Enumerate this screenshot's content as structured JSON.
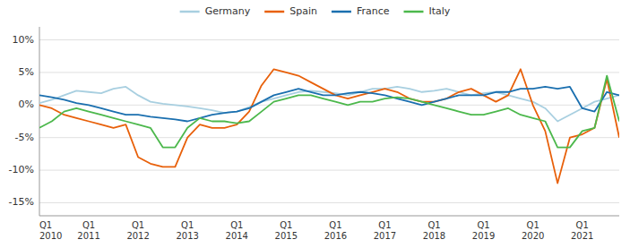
{
  "chart_data": {
    "type": "line",
    "categories": [
      "Q1\n2010",
      null,
      null,
      null,
      "Q1\n2011",
      null,
      null,
      null,
      "Q1\n2012",
      null,
      null,
      null,
      "Q1\n2013",
      null,
      null,
      null,
      "Q1\n2014",
      null,
      null,
      null,
      "Q1\n2015",
      null,
      null,
      null,
      "Q1\n2016",
      null,
      null,
      null,
      "Q1\n2017",
      null,
      null,
      null,
      "Q1\n2018",
      null,
      null,
      null,
      "Q1\n2019",
      null,
      null,
      null,
      "Q1\n2020",
      null,
      null,
      null,
      "Q1\n2021",
      null,
      null,
      null
    ],
    "series": [
      {
        "name": "Germany",
        "color": "#a8cfe0",
        "values": [
          0.3,
          0.8,
          1.5,
          2.2,
          2.0,
          1.8,
          2.5,
          2.8,
          1.5,
          0.5,
          0.2,
          0.0,
          -0.2,
          -0.5,
          -0.8,
          -1.2,
          -1.0,
          -0.3,
          0.5,
          1.0,
          1.5,
          2.0,
          2.2,
          2.0,
          1.8,
          1.5,
          2.0,
          2.5,
          2.5,
          2.8,
          2.5,
          2.0,
          2.2,
          2.5,
          2.0,
          1.5,
          1.8,
          2.0,
          1.5,
          1.0,
          0.5,
          -0.5,
          -2.5,
          -1.5,
          -0.5,
          0.5,
          1.0,
          1.5
        ]
      },
      {
        "name": "Spain",
        "color": "#e8600a",
        "values": [
          0.0,
          -0.5,
          -1.5,
          -2.0,
          -2.5,
          -3.0,
          -3.5,
          -3.0,
          -8.0,
          -9.0,
          -9.5,
          -9.5,
          -5.0,
          -3.0,
          -3.5,
          -3.5,
          -3.0,
          -1.0,
          3.0,
          5.5,
          5.0,
          4.5,
          3.5,
          2.5,
          1.5,
          1.0,
          1.5,
          2.0,
          2.5,
          2.0,
          1.0,
          0.5,
          0.5,
          1.0,
          2.0,
          2.5,
          1.5,
          0.5,
          1.5,
          5.5,
          0.0,
          -4.0,
          -12.0,
          -5.0,
          -4.5,
          -3.5,
          4.0,
          -5.0
        ]
      },
      {
        "name": "France",
        "color": "#1a6faf",
        "values": [
          1.5,
          1.2,
          0.8,
          0.3,
          0.0,
          -0.5,
          -1.0,
          -1.5,
          -1.5,
          -1.8,
          -2.0,
          -2.2,
          -2.5,
          -2.0,
          -1.5,
          -1.2,
          -1.0,
          -0.5,
          0.5,
          1.5,
          2.0,
          2.5,
          2.0,
          1.5,
          1.5,
          1.8,
          2.0,
          1.8,
          1.5,
          1.0,
          0.5,
          0.0,
          0.5,
          1.0,
          1.5,
          1.5,
          1.5,
          2.0,
          2.0,
          2.5,
          2.5,
          2.8,
          2.5,
          2.8,
          -0.5,
          -1.0,
          2.0,
          1.5
        ]
      },
      {
        "name": "Italy",
        "color": "#4cb84c",
        "values": [
          -3.5,
          -2.5,
          -1.0,
          -0.5,
          -1.0,
          -1.5,
          -2.0,
          -2.5,
          -3.0,
          -3.5,
          -6.5,
          -6.5,
          -3.5,
          -2.0,
          -2.5,
          -2.5,
          -2.8,
          -2.5,
          -1.0,
          0.5,
          1.0,
          1.5,
          1.5,
          1.0,
          0.5,
          0.0,
          0.5,
          0.5,
          1.0,
          1.2,
          1.0,
          0.5,
          0.0,
          -0.5,
          -1.0,
          -1.5,
          -1.5,
          -1.0,
          -0.5,
          -1.5,
          -2.0,
          -2.5,
          -6.5,
          -6.5,
          -4.0,
          -3.5,
          4.5,
          -2.5
        ]
      }
    ],
    "ylim": [
      -17,
      12
    ],
    "yticks": [
      {
        "value": -15,
        "label": "-15%"
      },
      {
        "value": -10,
        "label": "-10%"
      },
      {
        "value": -5,
        "label": "-5%"
      },
      {
        "value": 0,
        "label": "0%"
      },
      {
        "value": 5,
        "label": "5%"
      },
      {
        "value": 10,
        "label": "10%"
      }
    ],
    "grid": true,
    "legend": "top"
  }
}
